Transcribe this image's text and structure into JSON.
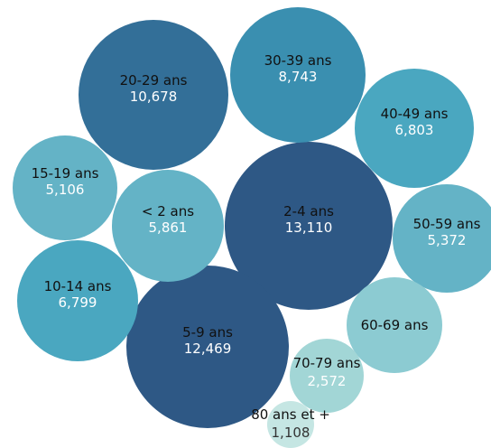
{
  "chart_data": {
    "type": "bubble",
    "title": "",
    "nodes": [
      {
        "label": "2-4 ans",
        "value": 13110,
        "value_label": "13,110",
        "color": "#2e5885"
      },
      {
        "label": "5-9 ans",
        "value": 12469,
        "value_label": "12,469",
        "color": "#2e5885"
      },
      {
        "label": "20-29 ans",
        "value": 10678,
        "value_label": "10,678",
        "color": "#336f98"
      },
      {
        "label": "30-39 ans",
        "value": 8743,
        "value_label": "8,743",
        "color": "#3a8fb0"
      },
      {
        "label": "40-49 ans",
        "value": 6803,
        "value_label": "6,803",
        "color": "#4aa7c0"
      },
      {
        "label": "10-14 ans",
        "value": 6799,
        "value_label": "6,799",
        "color": "#4aa7c0"
      },
      {
        "label": "< 2 ans",
        "value": 5861,
        "value_label": "5,861",
        "color": "#64b3c6"
      },
      {
        "label": "50-59 ans",
        "value": 5372,
        "value_label": "5,372",
        "color": "#64b3c6"
      },
      {
        "label": "15-19 ans",
        "value": 5106,
        "value_label": "5,106",
        "color": "#64b3c6"
      },
      {
        "label": "60-69 ans",
        "value": null,
        "value_label": "",
        "color": "#8ccbd2"
      },
      {
        "label": "70-79 ans",
        "value": 2572,
        "value_label": "2,572",
        "color": "#a2d6d6"
      },
      {
        "label": "80 ans et +",
        "value": 1108,
        "value_label": "1,108",
        "color": "#c5e6e3"
      }
    ]
  }
}
